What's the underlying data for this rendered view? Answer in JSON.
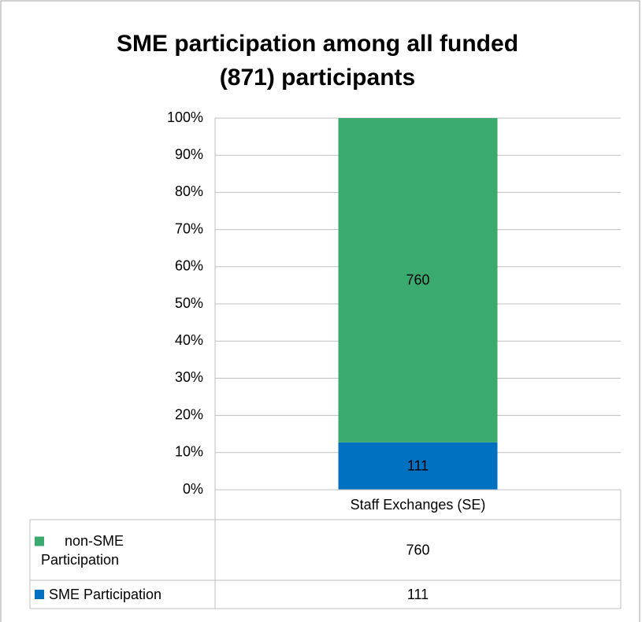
{
  "chart_data": {
    "type": "bar",
    "stacked": "percent",
    "title": [
      "SME participation among all funded",
      "(871) participants"
    ],
    "categories": [
      "Staff Exchanges (SE)"
    ],
    "series": [
      {
        "name": "SME Participation",
        "color": "#0070c0",
        "values": [
          111
        ]
      },
      {
        "name": "non-SME Participation",
        "color": "#3aaa6f",
        "values": [
          760
        ]
      }
    ],
    "ylim": [
      0,
      100
    ],
    "yticks": [
      {
        "value": 0,
        "label": "0%"
      },
      {
        "value": 10,
        "label": "10%"
      },
      {
        "value": 20,
        "label": "20%"
      },
      {
        "value": 30,
        "label": "30%"
      },
      {
        "value": 40,
        "label": "40%"
      },
      {
        "value": 50,
        "label": "50%"
      },
      {
        "value": 60,
        "label": "60%"
      },
      {
        "value": 70,
        "label": "70%"
      },
      {
        "value": 80,
        "label": "80%"
      },
      {
        "value": 90,
        "label": "90%"
      },
      {
        "value": 100,
        "label": "100%"
      }
    ],
    "grid": true,
    "data_table": true
  }
}
